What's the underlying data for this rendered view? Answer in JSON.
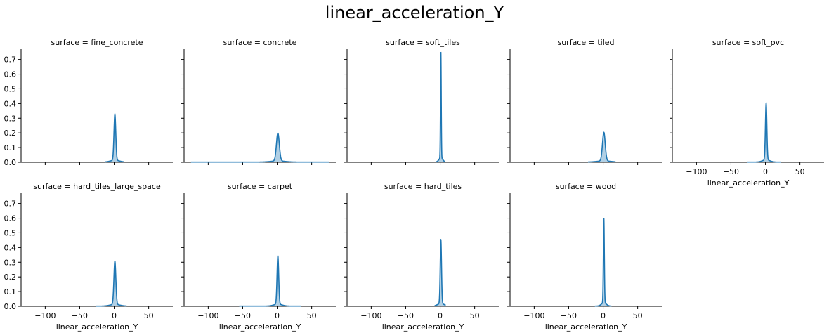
{
  "chart_data": {
    "type": "kde_facet_grid",
    "title": "linear_acceleration_Y",
    "color": "#1f77b4",
    "fill_opacity": 0.35,
    "xlim": [
      -135,
      85
    ],
    "ylim": [
      0,
      0.77
    ],
    "xticks": [
      -100,
      -50,
      0,
      50
    ],
    "yticks": [
      0.0,
      0.1,
      0.2,
      0.3,
      0.4,
      0.5,
      0.6,
      0.7
    ],
    "xtick_labels": [
      "−100",
      "−50",
      "0",
      "50"
    ],
    "ytick_labels": [
      "0.0",
      "0.1",
      "0.2",
      "0.3",
      "0.4",
      "0.5",
      "0.6",
      "0.7"
    ],
    "xlabel": "linear_acceleration_Y",
    "facet_label_prefix": "surface = ",
    "columns": 5,
    "facets": [
      {
        "surface": "fine_concrete",
        "center": 1,
        "peak": 0.315,
        "sigma": 1.3,
        "range": [
          -13,
          14
        ]
      },
      {
        "surface": "concrete",
        "center": 1,
        "peak": 0.19,
        "sigma": 2.1,
        "range": [
          -125,
          75
        ]
      },
      {
        "surface": "soft_tiles",
        "center": 1,
        "peak": 0.72,
        "sigma": 0.55,
        "range": [
          -6,
          7
        ]
      },
      {
        "surface": "tiled",
        "center": 1,
        "peak": 0.195,
        "sigma": 2.0,
        "range": [
          -22,
          18
        ]
      },
      {
        "surface": "soft_pvc",
        "center": 1,
        "peak": 0.385,
        "sigma": 1.05,
        "range": [
          -27,
          22
        ]
      },
      {
        "surface": "hard_tiles_large_space",
        "center": 1,
        "peak": 0.295,
        "sigma": 1.4,
        "range": [
          -27,
          18
        ]
      },
      {
        "surface": "carpet",
        "center": 1,
        "peak": 0.33,
        "sigma": 1.2,
        "range": [
          -55,
          35
        ]
      },
      {
        "surface": "hard_tiles",
        "center": 1,
        "peak": 0.435,
        "sigma": 0.95,
        "range": [
          -8,
          8
        ]
      },
      {
        "surface": "wood",
        "center": 1,
        "peak": 0.575,
        "sigma": 0.7,
        "range": [
          -12,
          12
        ]
      }
    ]
  }
}
